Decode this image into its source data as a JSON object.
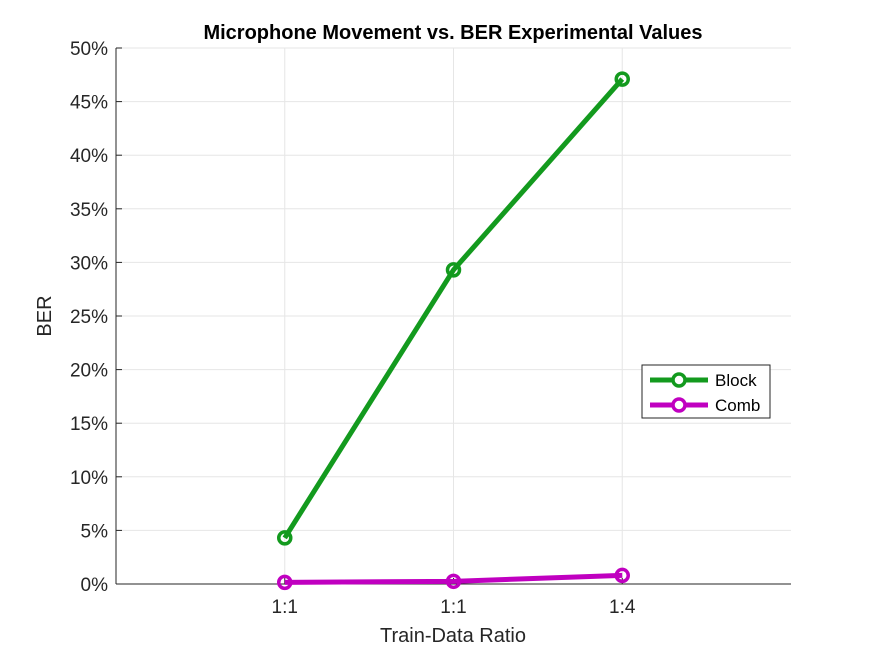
{
  "chart_data": {
    "type": "line",
    "title": "Microphone Movement vs. BER Experimental Values",
    "xlabel": "Train-Data Ratio",
    "ylabel": "BER",
    "categories": [
      "1:1",
      "1:1",
      "1:4"
    ],
    "xlim": [
      0,
      4
    ],
    "ylim": [
      0,
      50
    ],
    "yticks": [
      0,
      5,
      10,
      15,
      20,
      25,
      30,
      35,
      40,
      45,
      50
    ],
    "ytick_labels": [
      "0%",
      "5%",
      "10%",
      "15%",
      "20%",
      "25%",
      "30%",
      "35%",
      "40%",
      "45%",
      "50%"
    ],
    "grid": true,
    "legend_position": "right",
    "series": [
      {
        "name": "Block",
        "color": "#139a1e",
        "values": [
          4.3,
          29.3,
          47.1
        ]
      },
      {
        "name": "Comb",
        "color": "#c000c0",
        "values": [
          0.15,
          0.25,
          0.8
        ]
      }
    ]
  }
}
